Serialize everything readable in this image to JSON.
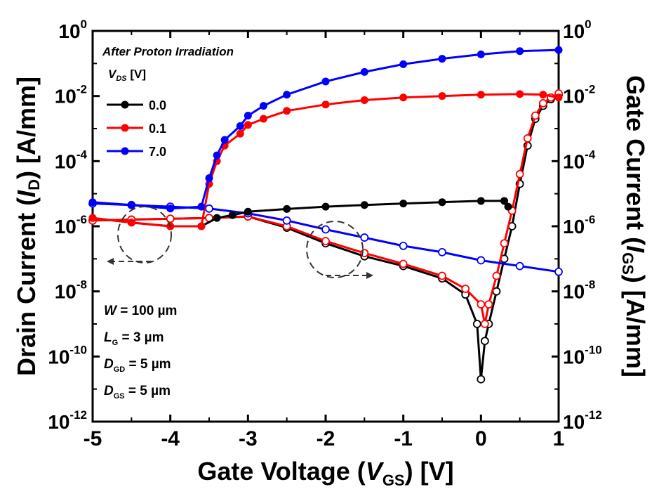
{
  "chart_data": {
    "type": "line",
    "annotation_title": "After Proton Irradiation",
    "xlabel": {
      "main": "Gate Voltage (",
      "var": "V",
      "sub": "GS",
      "tail": ") [V]"
    },
    "ylabel_left": {
      "main": "Drain Current (",
      "var": "I",
      "sub": "D",
      "tail": ") [A/mm]"
    },
    "ylabel_right": {
      "main": "Gate Current (",
      "var": "I",
      "sub": "GS",
      "tail": ") [A/mm]"
    },
    "x_range": [
      -5,
      1
    ],
    "x_ticks": [
      "-5",
      "-4",
      "-3",
      "-2",
      "-1",
      "0",
      "1"
    ],
    "y_log_range": [
      -12,
      0
    ],
    "y_ticks": [
      {
        "base": "10",
        "exp": "0",
        "e": 0
      },
      {
        "base": "10",
        "exp": "-2",
        "e": -2
      },
      {
        "base": "10",
        "exp": "-4",
        "e": -4
      },
      {
        "base": "10",
        "exp": "-6",
        "e": -6
      },
      {
        "base": "10",
        "exp": "-8",
        "e": -8
      },
      {
        "base": "10",
        "exp": "-10",
        "e": -10
      },
      {
        "base": "10",
        "exp": "-12",
        "e": -12
      }
    ],
    "legend": {
      "header_var": "V",
      "header_sub": "DS",
      "header_unit": " [V]",
      "items": [
        {
          "label": "0.0",
          "color": "#000000"
        },
        {
          "label": "0.1",
          "color": "#ff0000"
        },
        {
          "label": "7.0",
          "color": "#0000ff"
        }
      ]
    },
    "device_params": [
      {
        "var": "W",
        "sub": "",
        "text": " = 100 µm"
      },
      {
        "var": "L",
        "sub": "G",
        "text": " = 3 µm"
      },
      {
        "var": "D",
        "sub": "GD",
        "text": " = 5 µm"
      },
      {
        "var": "D",
        "sub": "GS",
        "text": " = 5 µm"
      }
    ],
    "series": [
      {
        "name": "0.0",
        "kind": "drain",
        "color": "#000000",
        "points": [
          [
            -5,
            1.8e-06
          ],
          [
            -4.5,
            1.3e-06
          ],
          [
            -4,
            1e-06
          ],
          [
            -3.6,
            1e-06
          ],
          [
            -3.4,
            1.8e-06
          ],
          [
            -3.2,
            2.2e-06
          ],
          [
            -3,
            2.8e-06
          ],
          [
            -2.5,
            3.4e-06
          ],
          [
            -2,
            4e-06
          ],
          [
            -1.5,
            4.5e-06
          ],
          [
            -1,
            5e-06
          ],
          [
            -0.5,
            5.5e-06
          ],
          [
            0,
            6e-06
          ],
          [
            0.3,
            6e-06
          ],
          [
            0.35,
            4e-06
          ]
        ]
      },
      {
        "name": "0.1",
        "kind": "drain",
        "color": "#ff0000",
        "points": [
          [
            -5,
            1.8e-06
          ],
          [
            -4.5,
            1.3e-06
          ],
          [
            -4,
            1e-06
          ],
          [
            -3.6,
            1e-06
          ],
          [
            -3.5,
            2e-05
          ],
          [
            -3.4,
            0.0001
          ],
          [
            -3.3,
            0.0003
          ],
          [
            -3.1,
            0.0007
          ],
          [
            -3,
            0.0013
          ],
          [
            -2.8,
            0.002
          ],
          [
            -2.5,
            0.0035
          ],
          [
            -2,
            0.0055
          ],
          [
            -1.5,
            0.0075
          ],
          [
            -1,
            0.009
          ],
          [
            -0.5,
            0.01
          ],
          [
            0,
            0.011
          ],
          [
            0.5,
            0.0115
          ],
          [
            0.8,
            0.011
          ],
          [
            1,
            0.009
          ]
        ]
      },
      {
        "name": "7.0",
        "kind": "drain",
        "color": "#0000ff",
        "points": [
          [
            -5,
            5.5e-06
          ],
          [
            -4.5,
            4.5e-06
          ],
          [
            -4,
            3.5e-06
          ],
          [
            -3.6,
            4e-06
          ],
          [
            -3.5,
            3e-05
          ],
          [
            -3.4,
            0.00015
          ],
          [
            -3.3,
            0.00045
          ],
          [
            -3.1,
            0.0012
          ],
          [
            -3,
            0.0025
          ],
          [
            -2.8,
            0.005
          ],
          [
            -2.5,
            0.011
          ],
          [
            -2,
            0.028
          ],
          [
            -1.5,
            0.055
          ],
          [
            -1,
            0.095
          ],
          [
            -0.5,
            0.14
          ],
          [
            0,
            0.19
          ],
          [
            0.5,
            0.24
          ],
          [
            1,
            0.26
          ]
        ]
      },
      {
        "name": "0.0",
        "kind": "gate",
        "color": "#000000",
        "points": [
          [
            -5,
            1.5e-06
          ],
          [
            -4.5,
            1.6e-06
          ],
          [
            -4,
            1.7e-06
          ],
          [
            -3.5,
            1.8e-06
          ],
          [
            -3,
            2e-06
          ],
          [
            -2.5,
            9e-07
          ],
          [
            -2,
            3e-07
          ],
          [
            -1.5,
            1.2e-07
          ],
          [
            -1,
            6e-08
          ],
          [
            -0.5,
            2.5e-08
          ],
          [
            -0.2,
            8e-09
          ],
          [
            -0.05,
            1e-09
          ],
          [
            0,
            2e-11
          ],
          [
            0.05,
            3e-10
          ],
          [
            0.1,
            1e-09
          ],
          [
            0.2,
            1e-08
          ],
          [
            0.3,
            1e-07
          ],
          [
            0.4,
            1e-06
          ],
          [
            0.5,
            2e-05
          ],
          [
            0.6,
            0.0003
          ],
          [
            0.7,
            0.002
          ],
          [
            0.8,
            0.005
          ],
          [
            0.9,
            0.008
          ],
          [
            1,
            0.011
          ]
        ]
      },
      {
        "name": "0.1",
        "kind": "gate",
        "color": "#ff0000",
        "points": [
          [
            -5,
            1.5e-06
          ],
          [
            -4.5,
            1.6e-06
          ],
          [
            -4,
            1.7e-06
          ],
          [
            -3.5,
            1.8e-06
          ],
          [
            -3,
            2e-06
          ],
          [
            -2.5,
            1e-06
          ],
          [
            -2,
            3.5e-07
          ],
          [
            -1.5,
            1.5e-07
          ],
          [
            -1,
            7e-08
          ],
          [
            -0.5,
            3e-08
          ],
          [
            -0.2,
            1.2e-08
          ],
          [
            0,
            4e-09
          ],
          [
            0.05,
            1e-09
          ],
          [
            0.1,
            4e-09
          ],
          [
            0.2,
            3e-08
          ],
          [
            0.3,
            3e-07
          ],
          [
            0.4,
            3e-06
          ],
          [
            0.5,
            4e-05
          ],
          [
            0.6,
            0.0005
          ],
          [
            0.7,
            0.0025
          ],
          [
            0.8,
            0.006
          ],
          [
            0.9,
            0.009
          ],
          [
            1,
            0.012
          ]
        ]
      },
      {
        "name": "7.0",
        "kind": "gate",
        "color": "#0000ff",
        "points": [
          [
            -5,
            5e-06
          ],
          [
            -4.5,
            4.5e-06
          ],
          [
            -4,
            4e-06
          ],
          [
            -3.5,
            3.5e-06
          ],
          [
            -3,
            2.5e-06
          ],
          [
            -2.5,
            1.5e-06
          ],
          [
            -2,
            8e-07
          ],
          [
            -1.5,
            4.5e-07
          ],
          [
            -1,
            2.5e-07
          ],
          [
            -0.5,
            1.6e-07
          ],
          [
            0,
            9e-08
          ],
          [
            0.5,
            6e-08
          ],
          [
            1,
            4e-08
          ]
        ]
      }
    ],
    "grid": false
  }
}
